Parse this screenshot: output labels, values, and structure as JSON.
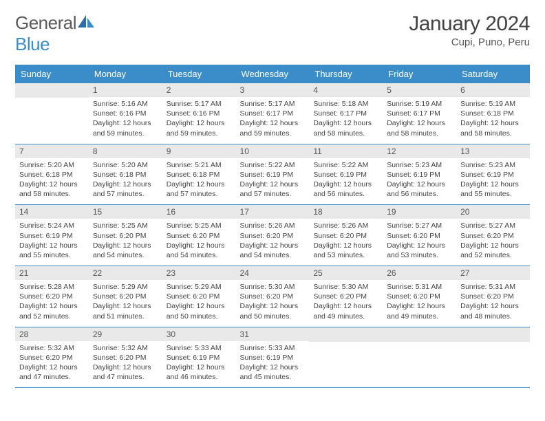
{
  "logo": {
    "word1": "General",
    "word2": "Blue"
  },
  "title": "January 2024",
  "location": "Cupi, Puno, Peru",
  "weekday_headers": [
    "Sunday",
    "Monday",
    "Tuesday",
    "Wednesday",
    "Thursday",
    "Friday",
    "Saturday"
  ],
  "colors": {
    "header_bg": "#3a8dc8",
    "header_text": "#ffffff",
    "daynum_bg": "#e9e9e9",
    "border": "#3a8dc8",
    "logo_gray": "#5a5a5a",
    "logo_blue": "#3a8dc8"
  },
  "weeks": [
    [
      null,
      {
        "n": "1",
        "sunrise": "Sunrise: 5:16 AM",
        "sunset": "Sunset: 6:16 PM",
        "day1": "Daylight: 12 hours",
        "day2": "and 59 minutes."
      },
      {
        "n": "2",
        "sunrise": "Sunrise: 5:17 AM",
        "sunset": "Sunset: 6:16 PM",
        "day1": "Daylight: 12 hours",
        "day2": "and 59 minutes."
      },
      {
        "n": "3",
        "sunrise": "Sunrise: 5:17 AM",
        "sunset": "Sunset: 6:17 PM",
        "day1": "Daylight: 12 hours",
        "day2": "and 59 minutes."
      },
      {
        "n": "4",
        "sunrise": "Sunrise: 5:18 AM",
        "sunset": "Sunset: 6:17 PM",
        "day1": "Daylight: 12 hours",
        "day2": "and 58 minutes."
      },
      {
        "n": "5",
        "sunrise": "Sunrise: 5:19 AM",
        "sunset": "Sunset: 6:17 PM",
        "day1": "Daylight: 12 hours",
        "day2": "and 58 minutes."
      },
      {
        "n": "6",
        "sunrise": "Sunrise: 5:19 AM",
        "sunset": "Sunset: 6:18 PM",
        "day1": "Daylight: 12 hours",
        "day2": "and 58 minutes."
      }
    ],
    [
      {
        "n": "7",
        "sunrise": "Sunrise: 5:20 AM",
        "sunset": "Sunset: 6:18 PM",
        "day1": "Daylight: 12 hours",
        "day2": "and 58 minutes."
      },
      {
        "n": "8",
        "sunrise": "Sunrise: 5:20 AM",
        "sunset": "Sunset: 6:18 PM",
        "day1": "Daylight: 12 hours",
        "day2": "and 57 minutes."
      },
      {
        "n": "9",
        "sunrise": "Sunrise: 5:21 AM",
        "sunset": "Sunset: 6:18 PM",
        "day1": "Daylight: 12 hours",
        "day2": "and 57 minutes."
      },
      {
        "n": "10",
        "sunrise": "Sunrise: 5:22 AM",
        "sunset": "Sunset: 6:19 PM",
        "day1": "Daylight: 12 hours",
        "day2": "and 57 minutes."
      },
      {
        "n": "11",
        "sunrise": "Sunrise: 5:22 AM",
        "sunset": "Sunset: 6:19 PM",
        "day1": "Daylight: 12 hours",
        "day2": "and 56 minutes."
      },
      {
        "n": "12",
        "sunrise": "Sunrise: 5:23 AM",
        "sunset": "Sunset: 6:19 PM",
        "day1": "Daylight: 12 hours",
        "day2": "and 56 minutes."
      },
      {
        "n": "13",
        "sunrise": "Sunrise: 5:23 AM",
        "sunset": "Sunset: 6:19 PM",
        "day1": "Daylight: 12 hours",
        "day2": "and 55 minutes."
      }
    ],
    [
      {
        "n": "14",
        "sunrise": "Sunrise: 5:24 AM",
        "sunset": "Sunset: 6:19 PM",
        "day1": "Daylight: 12 hours",
        "day2": "and 55 minutes."
      },
      {
        "n": "15",
        "sunrise": "Sunrise: 5:25 AM",
        "sunset": "Sunset: 6:20 PM",
        "day1": "Daylight: 12 hours",
        "day2": "and 54 minutes."
      },
      {
        "n": "16",
        "sunrise": "Sunrise: 5:25 AM",
        "sunset": "Sunset: 6:20 PM",
        "day1": "Daylight: 12 hours",
        "day2": "and 54 minutes."
      },
      {
        "n": "17",
        "sunrise": "Sunrise: 5:26 AM",
        "sunset": "Sunset: 6:20 PM",
        "day1": "Daylight: 12 hours",
        "day2": "and 54 minutes."
      },
      {
        "n": "18",
        "sunrise": "Sunrise: 5:26 AM",
        "sunset": "Sunset: 6:20 PM",
        "day1": "Daylight: 12 hours",
        "day2": "and 53 minutes."
      },
      {
        "n": "19",
        "sunrise": "Sunrise: 5:27 AM",
        "sunset": "Sunset: 6:20 PM",
        "day1": "Daylight: 12 hours",
        "day2": "and 53 minutes."
      },
      {
        "n": "20",
        "sunrise": "Sunrise: 5:27 AM",
        "sunset": "Sunset: 6:20 PM",
        "day1": "Daylight: 12 hours",
        "day2": "and 52 minutes."
      }
    ],
    [
      {
        "n": "21",
        "sunrise": "Sunrise: 5:28 AM",
        "sunset": "Sunset: 6:20 PM",
        "day1": "Daylight: 12 hours",
        "day2": "and 52 minutes."
      },
      {
        "n": "22",
        "sunrise": "Sunrise: 5:29 AM",
        "sunset": "Sunset: 6:20 PM",
        "day1": "Daylight: 12 hours",
        "day2": "and 51 minutes."
      },
      {
        "n": "23",
        "sunrise": "Sunrise: 5:29 AM",
        "sunset": "Sunset: 6:20 PM",
        "day1": "Daylight: 12 hours",
        "day2": "and 50 minutes."
      },
      {
        "n": "24",
        "sunrise": "Sunrise: 5:30 AM",
        "sunset": "Sunset: 6:20 PM",
        "day1": "Daylight: 12 hours",
        "day2": "and 50 minutes."
      },
      {
        "n": "25",
        "sunrise": "Sunrise: 5:30 AM",
        "sunset": "Sunset: 6:20 PM",
        "day1": "Daylight: 12 hours",
        "day2": "and 49 minutes."
      },
      {
        "n": "26",
        "sunrise": "Sunrise: 5:31 AM",
        "sunset": "Sunset: 6:20 PM",
        "day1": "Daylight: 12 hours",
        "day2": "and 49 minutes."
      },
      {
        "n": "27",
        "sunrise": "Sunrise: 5:31 AM",
        "sunset": "Sunset: 6:20 PM",
        "day1": "Daylight: 12 hours",
        "day2": "and 48 minutes."
      }
    ],
    [
      {
        "n": "28",
        "sunrise": "Sunrise: 5:32 AM",
        "sunset": "Sunset: 6:20 PM",
        "day1": "Daylight: 12 hours",
        "day2": "and 47 minutes."
      },
      {
        "n": "29",
        "sunrise": "Sunrise: 5:32 AM",
        "sunset": "Sunset: 6:20 PM",
        "day1": "Daylight: 12 hours",
        "day2": "and 47 minutes."
      },
      {
        "n": "30",
        "sunrise": "Sunrise: 5:33 AM",
        "sunset": "Sunset: 6:19 PM",
        "day1": "Daylight: 12 hours",
        "day2": "and 46 minutes."
      },
      {
        "n": "31",
        "sunrise": "Sunrise: 5:33 AM",
        "sunset": "Sunset: 6:19 PM",
        "day1": "Daylight: 12 hours",
        "day2": "and 45 minutes."
      },
      null,
      null,
      null
    ]
  ]
}
